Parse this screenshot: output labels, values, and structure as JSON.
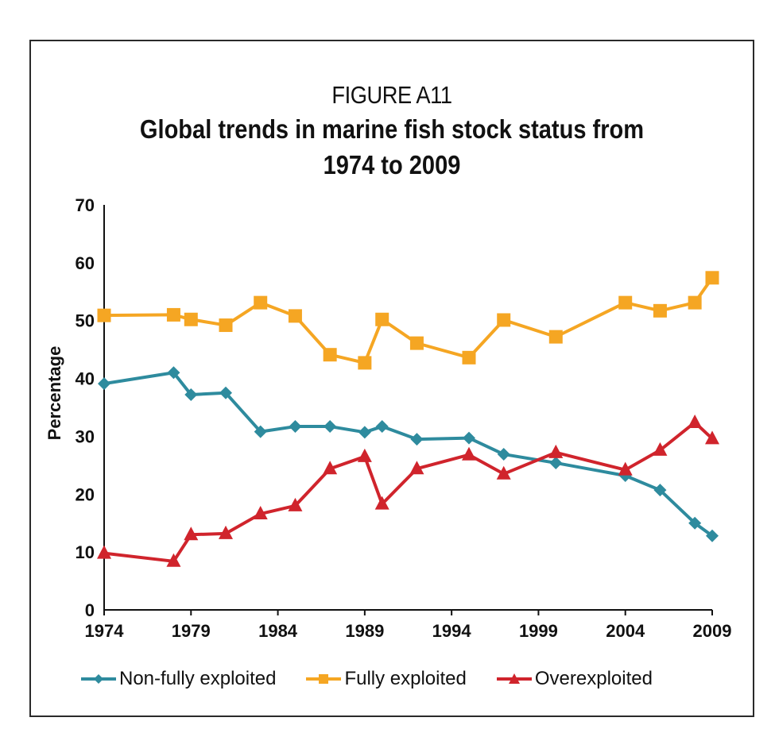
{
  "chart_data": {
    "type": "line",
    "figure_label": "FIGURE A11",
    "title": "Global trends in marine fish stock status from 1974 to 2009",
    "title_lines": [
      "Global trends in marine fish stock status from",
      "1974 to 2009"
    ],
    "xlabel": "",
    "ylabel": "Percentage",
    "xlim": [
      1974,
      2009
    ],
    "ylim": [
      0,
      70
    ],
    "x_ticks": [
      1974,
      1979,
      1984,
      1989,
      1994,
      1999,
      2004,
      2009
    ],
    "y_ticks": [
      0,
      10,
      20,
      30,
      40,
      50,
      60,
      70
    ],
    "grid": false,
    "legend_position": "bottom",
    "x": [
      1974,
      1978,
      1979,
      1981,
      1983,
      1985,
      1987,
      1989,
      1990,
      1992,
      1995,
      1997,
      2000,
      2004,
      2006,
      2008,
      2009
    ],
    "series": [
      {
        "name": "Non-fully exploited",
        "color": "#2E8B9E",
        "marker": "diamond",
        "values": [
          39.1,
          41.0,
          37.2,
          37.5,
          30.8,
          31.7,
          31.7,
          30.7,
          31.7,
          29.5,
          29.7,
          26.9,
          25.4,
          23.2,
          20.7,
          15.0,
          12.8
        ]
      },
      {
        "name": "Fully exploited",
        "color": "#F5A623",
        "marker": "square",
        "values": [
          50.9,
          51.0,
          50.2,
          49.2,
          53.1,
          50.8,
          44.1,
          42.7,
          50.2,
          46.1,
          43.6,
          50.1,
          47.2,
          53.1,
          51.7,
          53.1,
          57.4
        ]
      },
      {
        "name": "Overexploited",
        "color": "#D0242C",
        "marker": "triangle",
        "values": [
          9.8,
          8.4,
          13.0,
          13.2,
          16.6,
          18.0,
          24.4,
          26.5,
          18.3,
          24.4,
          26.8,
          23.5,
          27.2,
          24.2,
          27.6,
          32.4,
          29.6
        ]
      }
    ]
  }
}
